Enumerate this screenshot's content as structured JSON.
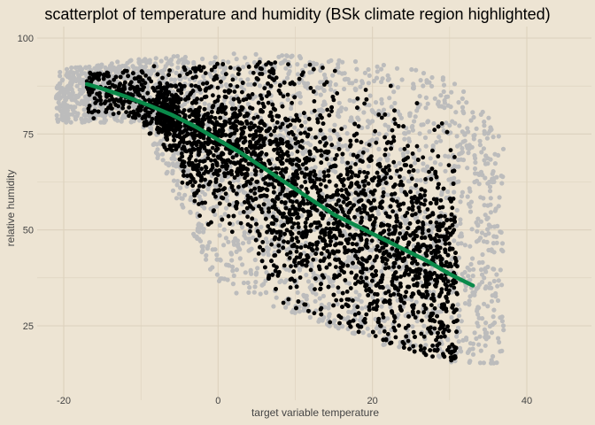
{
  "chart_data": {
    "type": "scatter",
    "title": "scatterplot of temperature and humidity (BSk climate region highlighted)",
    "xlabel": "target variable temperature",
    "ylabel": "relative humidity",
    "xlim": [
      -22,
      40
    ],
    "ylim": [
      12,
      102
    ],
    "xticks": [
      "-20",
      "0",
      "20",
      "40"
    ],
    "yticks": [
      "25",
      "50",
      "75",
      "100"
    ],
    "grid": true,
    "colors": {
      "background": "#ede4d3",
      "grid": "#dcd1bd",
      "all_points": "#bcbcbc",
      "highlighted_points": "#000000",
      "trend_line": "#0a8a4a"
    },
    "series": [
      {
        "kind": "scatter-cloud",
        "color": "#bcbcbc",
        "approx_points_sample": [
          [
            -20,
            88
          ],
          [
            -18,
            90
          ],
          [
            -15,
            92
          ],
          [
            -12,
            91
          ],
          [
            -10,
            94
          ],
          [
            -5,
            95
          ],
          [
            0,
            96
          ],
          [
            5,
            94
          ],
          [
            10,
            93
          ],
          [
            15,
            90
          ],
          [
            20,
            88
          ],
          [
            25,
            85
          ],
          [
            30,
            80
          ],
          [
            33,
            70
          ],
          [
            35,
            55
          ],
          [
            36,
            40
          ],
          [
            37,
            25
          ],
          [
            34,
            18
          ],
          [
            30,
            22
          ],
          [
            25,
            30
          ],
          [
            0,
            45
          ],
          [
            -3,
            60
          ],
          [
            -1,
            35
          ],
          [
            5,
            30
          ],
          [
            10,
            28
          ]
        ]
      },
      {
        "kind": "scatter-cloud-highlighted",
        "color": "#000000",
        "approx_points_sample": [
          [
            -17,
            80
          ],
          [
            -15,
            85
          ],
          [
            -12,
            88
          ],
          [
            -10,
            90
          ],
          [
            -5,
            92
          ],
          [
            0,
            90
          ],
          [
            5,
            88
          ],
          [
            10,
            85
          ],
          [
            15,
            80
          ],
          [
            20,
            75
          ],
          [
            25,
            60
          ],
          [
            28,
            45
          ],
          [
            30,
            35
          ],
          [
            30,
            25
          ],
          [
            25,
            15
          ],
          [
            20,
            18
          ],
          [
            15,
            25
          ],
          [
            10,
            35
          ],
          [
            5,
            45
          ],
          [
            0,
            55
          ],
          [
            -3,
            65
          ],
          [
            -8,
            75
          ],
          [
            0,
            75
          ],
          [
            10,
            60
          ],
          [
            20,
            45
          ]
        ]
      },
      {
        "kind": "trend-line",
        "color": "#0a8a4a",
        "x": [
          -17,
          -15,
          -12,
          -9,
          -6,
          -3,
          0,
          3,
          6,
          9,
          12,
          15,
          18,
          21,
          24,
          27,
          30,
          33
        ],
        "y": [
          88,
          86.8,
          84.8,
          82.5,
          80,
          77,
          73.5,
          70,
          66,
          62,
          58,
          54,
          51,
          48,
          45,
          42,
          38.5,
          35.5
        ]
      }
    ]
  }
}
